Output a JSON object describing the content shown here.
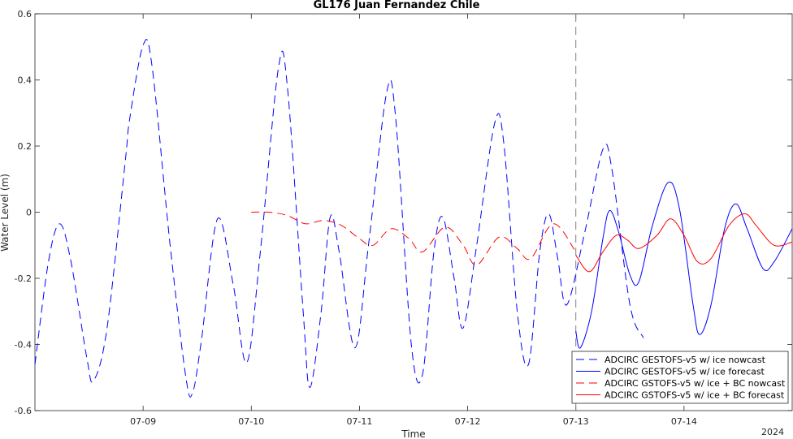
{
  "chart_data": {
    "type": "line",
    "title": "GL176 Juan Fernandez Chile",
    "xlabel": "Time",
    "ylabel": "Water Level (m)",
    "x_year_label": "2024",
    "xlim": [
      "2024-07-08T00:00",
      "2024-07-15T00:00"
    ],
    "ylim": [
      -0.6,
      0.6
    ],
    "yticks": [
      -0.6,
      -0.4,
      -0.2,
      0,
      0.2,
      0.4,
      0.6
    ],
    "ytick_labels": [
      "-0.6",
      "-0.4",
      "-0.2",
      "0",
      "0.2",
      "0.4",
      "0.6"
    ],
    "xticks": [
      "2024-07-09T00:00",
      "2024-07-10T00:00",
      "2024-07-11T00:00",
      "2024-07-12T00:00",
      "2024-07-13T00:00",
      "2024-07-14T00:00"
    ],
    "xtick_labels": [
      "07-09",
      "07-10",
      "07-11",
      "07-12",
      "07-13",
      "07-14"
    ],
    "grid": false,
    "forecast_start": "2024-07-13T00:00",
    "legend_position": "bottom-right",
    "series": [
      {
        "name": "ADCIRC GESTOFS-v5 w/ ice nowcast",
        "color": "#0000ff",
        "dash": "dashed",
        "points": [
          [
            "2024-07-08T00:00",
            -0.46
          ],
          [
            "2024-07-08T03:00",
            -0.15
          ],
          [
            "2024-07-08T05:30",
            -0.035
          ],
          [
            "2024-07-08T08:00",
            -0.15
          ],
          [
            "2024-07-08T11:30",
            -0.44
          ],
          [
            "2024-07-08T13:00",
            -0.51
          ],
          [
            "2024-07-08T16:00",
            -0.35
          ],
          [
            "2024-07-08T20:00",
            0.15
          ],
          [
            "2024-07-09T00:00",
            0.505
          ],
          [
            "2024-07-09T02:00",
            0.44
          ],
          [
            "2024-07-09T06:00",
            -0.1
          ],
          [
            "2024-07-08T21:00",
            0.28
          ],
          [
            "2024-07-09T09:30",
            -0.5
          ],
          [
            "2024-07-09T11:00",
            -0.545
          ],
          [
            "2024-07-09T13:00",
            -0.38
          ],
          [
            "2024-07-09T16:30",
            -0.02
          ],
          [
            "2024-07-09T20:00",
            -0.22
          ],
          [
            "2024-07-09T23:00",
            -0.455
          ],
          [
            "2024-07-10T02:00",
            -0.12
          ],
          [
            "2024-07-10T06:00",
            0.435
          ],
          [
            "2024-07-10T08:00",
            0.38
          ],
          [
            "2024-07-10T11:30",
            -0.3
          ],
          [
            "2024-07-10T13:00",
            -0.53
          ],
          [
            "2024-07-10T15:30",
            -0.3
          ],
          [
            "2024-07-10T17:30",
            -0.015
          ],
          [
            "2024-07-10T19:30",
            -0.12
          ],
          [
            "2024-07-10T23:00",
            -0.41
          ],
          [
            "2024-07-11T02:00",
            -0.1
          ],
          [
            "2024-07-11T06:00",
            0.36
          ],
          [
            "2024-07-11T08:00",
            0.29
          ],
          [
            "2024-07-11T11:30",
            -0.4
          ],
          [
            "2024-07-11T14:00",
            -0.49
          ],
          [
            "2024-07-11T16:30",
            -0.12
          ],
          [
            "2024-07-11T18:30",
            -0.015
          ],
          [
            "2024-07-11T21:00",
            -0.2
          ],
          [
            "2024-07-11T23:00",
            -0.35
          ],
          [
            "2024-07-12T02:00",
            -0.1
          ],
          [
            "2024-07-12T06:00",
            0.27
          ],
          [
            "2024-07-12T08:00",
            0.21
          ],
          [
            "2024-07-12T11:00",
            -0.3
          ],
          [
            "2024-07-12T13:30",
            -0.46
          ],
          [
            "2024-07-12T16:00",
            -0.12
          ],
          [
            "2024-07-12T18:00",
            -0.005
          ],
          [
            "2024-07-12T20:00",
            -0.14
          ],
          [
            "2024-07-12T22:00",
            -0.28
          ],
          [
            "2024-07-13T02:00",
            -0.06
          ],
          [
            "2024-07-13T06:00",
            0.19
          ],
          [
            "2024-07-13T08:00",
            0.13
          ],
          [
            "2024-07-13T12:00",
            -0.28
          ],
          [
            "2024-07-13T15:00",
            -0.38
          ]
        ]
      },
      {
        "name": "ADCIRC GESTOFS-v5 w/ ice forecast",
        "color": "#0000ff",
        "dash": "solid",
        "points": [
          [
            "2024-07-13T00:00",
            -0.36
          ],
          [
            "2024-07-13T01:00",
            -0.41
          ],
          [
            "2024-07-13T03:30",
            -0.3
          ],
          [
            "2024-07-13T06:00",
            -0.08
          ],
          [
            "2024-07-13T07:30",
            0.005
          ],
          [
            "2024-07-13T09:30",
            -0.06
          ],
          [
            "2024-07-13T12:00",
            -0.19
          ],
          [
            "2024-07-13T14:00",
            -0.21
          ],
          [
            "2024-07-13T17:00",
            -0.04
          ],
          [
            "2024-07-13T20:30",
            0.09
          ],
          [
            "2024-07-13T23:00",
            0.01
          ],
          [
            "2024-07-14T02:00",
            -0.28
          ],
          [
            "2024-07-14T03:30",
            -0.37
          ],
          [
            "2024-07-14T06:00",
            -0.28
          ],
          [
            "2024-07-14T09:00",
            -0.05
          ],
          [
            "2024-07-14T11:30",
            0.025
          ],
          [
            "2024-07-14T14:00",
            -0.05
          ],
          [
            "2024-07-14T17:30",
            -0.17
          ],
          [
            "2024-07-14T20:00",
            -0.15
          ],
          [
            "2024-07-15T00:00",
            -0.05
          ]
        ]
      },
      {
        "name": "ADCIRC GSTOFS-v5 w/ ice + BC nowcast",
        "color": "#ff0000",
        "dash": "dashed",
        "points": [
          [
            "2024-07-10T00:00",
            0.0
          ],
          [
            "2024-07-10T04:00",
            0.0
          ],
          [
            "2024-07-10T08:00",
            -0.01
          ],
          [
            "2024-07-10T12:00",
            -0.035
          ],
          [
            "2024-07-10T16:00",
            -0.025
          ],
          [
            "2024-07-10T20:00",
            -0.04
          ],
          [
            "2024-07-11T00:00",
            -0.08
          ],
          [
            "2024-07-11T03:00",
            -0.1
          ],
          [
            "2024-07-11T07:00",
            -0.05
          ],
          [
            "2024-07-11T11:00",
            -0.08
          ],
          [
            "2024-07-11T14:00",
            -0.12
          ],
          [
            "2024-07-11T19:00",
            -0.045
          ],
          [
            "2024-07-11T23:00",
            -0.1
          ],
          [
            "2024-07-12T02:00",
            -0.16
          ],
          [
            "2024-07-12T07:00",
            -0.075
          ],
          [
            "2024-07-12T11:00",
            -0.11
          ],
          [
            "2024-07-12T14:00",
            -0.14
          ],
          [
            "2024-07-12T19:00",
            -0.035
          ],
          [
            "2024-07-13T00:00",
            -0.12
          ]
        ]
      },
      {
        "name": "ADCIRC GSTOFS-v5 w/ ice + BC forecast",
        "color": "#ff0000",
        "dash": "solid",
        "points": [
          [
            "2024-07-13T00:00",
            -0.13
          ],
          [
            "2024-07-13T03:00",
            -0.18
          ],
          [
            "2024-07-13T06:00",
            -0.12
          ],
          [
            "2024-07-13T09:00",
            -0.07
          ],
          [
            "2024-07-13T11:30",
            -0.085
          ],
          [
            "2024-07-13T14:00",
            -0.11
          ],
          [
            "2024-07-13T18:00",
            -0.07
          ],
          [
            "2024-07-13T21:00",
            -0.02
          ],
          [
            "2024-07-14T00:00",
            -0.07
          ],
          [
            "2024-07-14T03:00",
            -0.15
          ],
          [
            "2024-07-14T06:00",
            -0.14
          ],
          [
            "2024-07-14T10:00",
            -0.04
          ],
          [
            "2024-07-14T13:30",
            -0.005
          ],
          [
            "2024-07-14T16:00",
            -0.04
          ],
          [
            "2024-07-14T20:00",
            -0.1
          ],
          [
            "2024-07-15T00:00",
            -0.09
          ]
        ]
      }
    ]
  }
}
